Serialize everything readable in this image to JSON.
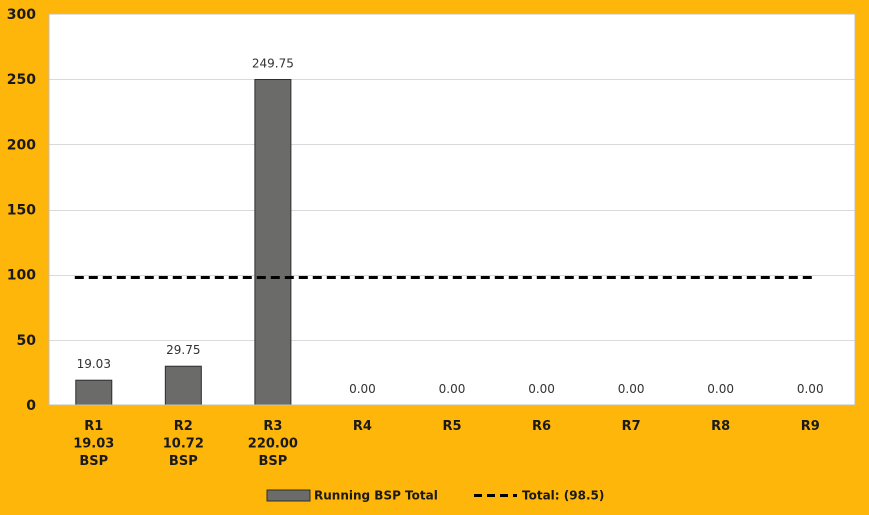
{
  "chart_data": {
    "type": "bar",
    "categories": [
      [
        "R1",
        "19.03",
        "BSP"
      ],
      [
        "R2",
        "10.72",
        "BSP"
      ],
      [
        "R3",
        "220.00",
        "BSP"
      ],
      [
        "R4"
      ],
      [
        "R5"
      ],
      [
        "R6"
      ],
      [
        "R7"
      ],
      [
        "R8"
      ],
      [
        "R9"
      ]
    ],
    "series": [
      {
        "name": "Running BSP Total",
        "values": [
          19.03,
          29.75,
          249.75,
          0,
          0,
          0,
          0,
          0,
          0
        ],
        "data_labels": [
          "19.03",
          "29.75",
          "249.75",
          "0.00",
          "0.00",
          "0.00",
          "0.00",
          "0.00",
          "0.00"
        ]
      }
    ],
    "reference_line": {
      "name": "Total: (98.5)",
      "value": 98.5,
      "style": "dashed"
    },
    "title": "",
    "xlabel": "",
    "ylabel": "",
    "ylim": [
      0,
      300
    ],
    "yticks": [
      0,
      50,
      100,
      150,
      200,
      250,
      300
    ],
    "grid": true,
    "legend_position": "bottom",
    "colors": {
      "background": "#FFB60A",
      "plot_area": "#FFFFFF",
      "bar_fill": "#6B6B69",
      "bar_stroke": "#2E2E2E",
      "gridline": "#D9D9D9",
      "reference_line": "#000000"
    }
  }
}
